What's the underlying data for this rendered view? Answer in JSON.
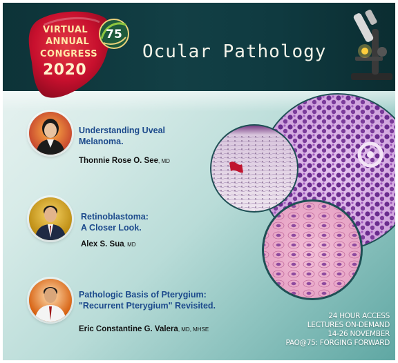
{
  "logo": {
    "line1": "VIRTUAL",
    "line2": "ANNUAL",
    "line3": "CONGRESS",
    "year": "2020",
    "emblem_number": "75"
  },
  "title": "Ocular Pathology",
  "speakers": [
    {
      "talk_line1": "Understanding Uveal",
      "talk_line2": "Melanoma.",
      "name": "Thonnie Rose O. See",
      "credentials": ", MD"
    },
    {
      "talk_line1": "Retinoblastoma:",
      "talk_line2": "A Closer Look.",
      "name": "Alex S. Sua",
      "credentials": ", MD"
    },
    {
      "talk_line1": "Pathologic Basis of Pterygium:",
      "talk_line2": "\"Recurrent Pterygium\" Revisited.",
      "name": "Eric Constantine G. Valera",
      "credentials": ", MD, MHSE"
    }
  ],
  "info": {
    "line1": "24 HOUR ACCESS",
    "line2": "LECTURES ON-DEMAND",
    "line3": "14-26 NOVEMBER",
    "line4": "PAO@75: FORGING FORWARD"
  },
  "colors": {
    "header": "#0f3a40",
    "logo_red": "#c8102e",
    "talk_title": "#1c4a8c",
    "stain_purple": "#7a3b9a",
    "stain_pink": "#e8a7c8"
  },
  "icons": [
    "microscope-icon",
    "pao-75-emblem-icon"
  ]
}
